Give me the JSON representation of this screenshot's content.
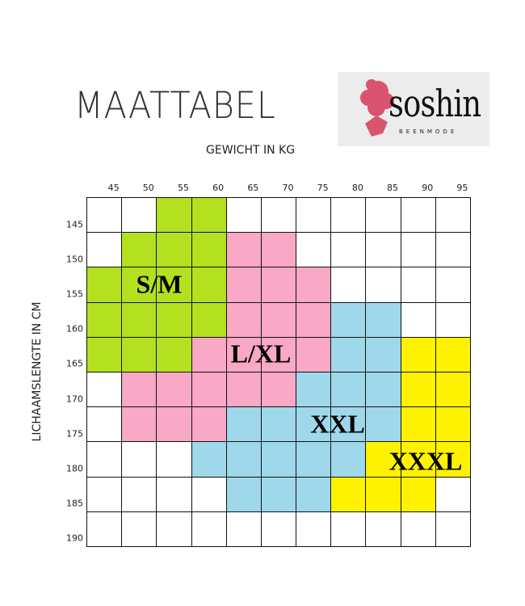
{
  "title": "MAATTABEL",
  "logo": {
    "text": "soshin",
    "subtext": "BEENMODE"
  },
  "colors": {
    "S/M": "#b3e01f",
    "L/XL": "#f9a8c6",
    "XXL": "#9fd8ea",
    "XXXL": "#fff200",
    "none": "#ffffff",
    "grid": "#111111"
  },
  "chart_data": {
    "type": "heatmap",
    "xlabel": "GEWICHT IN KG",
    "ylabel": "LICHAAMSLENGTE IN CM",
    "x": [
      "45",
      "50",
      "55",
      "60",
      "65",
      "70",
      "75",
      "80",
      "85",
      "90",
      "95"
    ],
    "y": [
      "145",
      "150",
      "155",
      "160",
      "165",
      "170",
      "175",
      "180",
      "185",
      "190"
    ],
    "zones": [
      "S/M",
      "L/XL",
      "XXL",
      "XXXL"
    ],
    "values": [
      [
        "",
        "",
        "S/M",
        "S/M",
        "",
        "",
        "",
        "",
        "",
        "",
        ""
      ],
      [
        "",
        "S/M",
        "S/M",
        "S/M",
        "L/XL",
        "L/XL",
        "",
        "",
        "",
        "",
        ""
      ],
      [
        "S/M",
        "S/M",
        "S/M",
        "S/M",
        "L/XL",
        "L/XL",
        "L/XL",
        "",
        "",
        "",
        ""
      ],
      [
        "S/M",
        "S/M",
        "S/M",
        "S/M",
        "L/XL",
        "L/XL",
        "L/XL",
        "XXL",
        "XXL",
        "",
        ""
      ],
      [
        "S/M",
        "S/M",
        "S/M",
        "L/XL",
        "L/XL",
        "L/XL",
        "L/XL",
        "XXL",
        "XXL",
        "XXXL",
        "XXXL"
      ],
      [
        "",
        "L/XL",
        "L/XL",
        "L/XL",
        "L/XL",
        "L/XL",
        "XXL",
        "XXL",
        "XXL",
        "XXXL",
        "XXXL"
      ],
      [
        "",
        "L/XL",
        "L/XL",
        "L/XL",
        "XXL",
        "XXL",
        "XXL",
        "XXL",
        "XXL",
        "XXXL",
        "XXXL"
      ],
      [
        "",
        "",
        "",
        "XXL",
        "XXL",
        "XXL",
        "XXL",
        "XXL",
        "XXXL",
        "XXXL",
        "XXXL"
      ],
      [
        "",
        "",
        "",
        "",
        "XXL",
        "XXL",
        "XXL",
        "XXXL",
        "XXXL",
        "XXXL",
        ""
      ],
      [
        "",
        "",
        "",
        "",
        "",
        "",
        "",
        "",
        "",
        "",
        ""
      ]
    ]
  }
}
